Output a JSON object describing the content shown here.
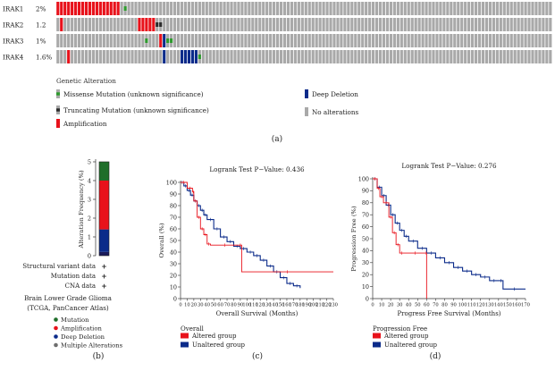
{
  "oncoprint": {
    "genes": [
      {
        "name": "IRAK1",
        "pct": "2%",
        "alterations": [
          {
            "type": "amp",
            "from": 0,
            "to": 18
          },
          {
            "type": "missense",
            "from": 19,
            "to": 20
          }
        ]
      },
      {
        "name": "IRAK2",
        "pct": "1.2",
        "alterations": [
          {
            "type": "amp",
            "from": 1,
            "to": 2
          },
          {
            "type": "amp",
            "from": 23,
            "to": 28
          },
          {
            "type": "truncating",
            "from": 28,
            "to": 30
          }
        ]
      },
      {
        "name": "IRAK3",
        "pct": "1%",
        "alterations": [
          {
            "type": "missense",
            "from": 25,
            "to": 26
          },
          {
            "type": "amp",
            "from": 29,
            "to": 30
          },
          {
            "type": "deep",
            "from": 30,
            "to": 31
          },
          {
            "type": "missense",
            "from": 31,
            "to": 33
          }
        ]
      },
      {
        "name": "IRAK4",
        "pct": "1.6%",
        "alterations": [
          {
            "type": "amp",
            "from": 3,
            "to": 4
          },
          {
            "type": "deep",
            "from": 30,
            "to": 31
          },
          {
            "type": "deep",
            "from": 35,
            "to": 40
          },
          {
            "type": "missense",
            "from": 40,
            "to": 41
          }
        ]
      }
    ],
    "n_columns": 140,
    "legend_title": "Genetic Alteration",
    "legend": [
      {
        "key": "missense",
        "label": "Missense Mutation (unknown significance)"
      },
      {
        "key": "truncating",
        "label": "Truncating Mutation (unknown significance)"
      },
      {
        "key": "amp",
        "label": "Amplification"
      },
      {
        "key": "deep",
        "label": "Deep Deletion"
      },
      {
        "key": "none",
        "label": "No alterations"
      }
    ],
    "colors": {
      "none": "#a9a9a9",
      "amp": "#e8121b",
      "deep": "#0b2b8a",
      "missense": "#2e9a2e",
      "truncating": "#2a2a2a"
    }
  },
  "panel_labels": {
    "a": "(a)",
    "b": "(b)",
    "c": "(c)",
    "d": "(d)"
  },
  "chart_data": [
    {
      "type": "bar",
      "stacked": true,
      "title": "",
      "ylabel": "Alteration Frequency (%)",
      "ylim": [
        0,
        5
      ],
      "yticks": [
        0,
        1,
        2,
        3,
        4,
        5
      ],
      "series": [
        {
          "name": "Multiple Alterations",
          "color": "#1a1a5a",
          "values": [
            0.2
          ]
        },
        {
          "name": "Deep Deletion",
          "color": "#0b2b8a",
          "values": [
            1.2
          ]
        },
        {
          "name": "Amplification",
          "color": "#e8121b",
          "values": [
            2.6
          ]
        },
        {
          "name": "Mutation",
          "color": "#1f6e2a",
          "values": [
            1.0
          ]
        }
      ],
      "annotation_rows": [
        "Structural variant data",
        "Mutation data",
        "CNA data"
      ],
      "annotation_mark": "+",
      "study": [
        "Brain Lower Grade Glioma",
        "(TCGA, PanCancer Atlas)"
      ],
      "legend": [
        {
          "label": "Mutation",
          "color": "#1f6e2a"
        },
        {
          "label": "Amplification",
          "color": "#e8121b"
        },
        {
          "label": "Deep Deletion",
          "color": "#0b2b8a"
        },
        {
          "label": "Multiple Alterations",
          "color": "#6e6e6e"
        }
      ]
    },
    {
      "type": "line",
      "title": "Logrank Test P−Value: 0.436",
      "xlabel": "Overall Survival (Months)",
      "ylabel": "Overall (%)",
      "xlim": [
        0,
        230
      ],
      "ylim": [
        0,
        100
      ],
      "xticks": [
        0,
        10,
        20,
        30,
        40,
        50,
        60,
        70,
        80,
        90,
        100,
        110,
        120,
        130,
        140,
        150,
        160,
        170,
        180,
        190,
        200,
        210,
        220,
        230
      ],
      "yticks": [
        0,
        10,
        20,
        30,
        40,
        50,
        60,
        70,
        80,
        90,
        100
      ],
      "legend_title": "Overall",
      "series": [
        {
          "name": "Altered group",
          "color": "#e8121b",
          "x": [
            0,
            10,
            18,
            20,
            25,
            30,
            35,
            40,
            45,
            88,
            92,
            230
          ],
          "y": [
            100,
            95,
            92,
            84,
            70,
            60,
            55,
            47,
            46,
            46,
            23,
            23
          ]
        },
        {
          "name": "Unaltered group",
          "color": "#0b2b8a",
          "x": [
            0,
            5,
            10,
            15,
            20,
            25,
            30,
            35,
            40,
            50,
            60,
            70,
            80,
            90,
            100,
            110,
            120,
            130,
            140,
            150,
            160,
            170,
            180
          ],
          "y": [
            100,
            97,
            93,
            89,
            84,
            80,
            76,
            72,
            68,
            60,
            53,
            49,
            45,
            43,
            40,
            37,
            33,
            28,
            23,
            18,
            13,
            11,
            9
          ]
        }
      ]
    },
    {
      "type": "line",
      "title": "Logrank Test P−Value: 0.276",
      "xlabel": "Progress Free Survival (Months)",
      "ylabel": "Progression Free (%)",
      "xlim": [
        0,
        170
      ],
      "ylim": [
        0,
        100
      ],
      "xticks": [
        0,
        10,
        20,
        30,
        40,
        50,
        60,
        70,
        80,
        90,
        100,
        110,
        120,
        130,
        140,
        150,
        160,
        170
      ],
      "yticks": [
        0,
        10,
        20,
        30,
        40,
        50,
        60,
        70,
        80,
        90,
        100
      ],
      "legend_title": "Progression Free",
      "series": [
        {
          "name": "Altered group",
          "color": "#e8121b",
          "x": [
            0,
            5,
            8,
            12,
            18,
            22,
            26,
            30,
            35,
            59,
            60
          ],
          "y": [
            100,
            92,
            85,
            80,
            68,
            55,
            45,
            38,
            38,
            38,
            0
          ]
        },
        {
          "name": "Unaltered group",
          "color": "#0b2b8a",
          "x": [
            0,
            5,
            10,
            15,
            20,
            25,
            30,
            35,
            40,
            50,
            60,
            70,
            80,
            90,
            100,
            110,
            120,
            130,
            140,
            145,
            170
          ],
          "y": [
            100,
            93,
            86,
            78,
            70,
            63,
            57,
            52,
            48,
            42,
            38,
            34,
            30,
            26,
            23,
            20,
            18,
            15,
            15,
            8,
            8
          ]
        }
      ]
    }
  ]
}
